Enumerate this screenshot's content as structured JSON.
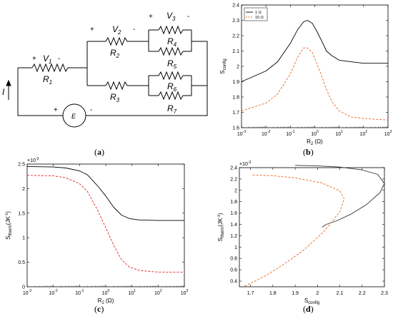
{
  "figure": {
    "panels": [
      {
        "id": "a",
        "caption": "a"
      },
      {
        "id": "b",
        "caption": "b"
      },
      {
        "id": "c",
        "caption": "c"
      },
      {
        "id": "d",
        "caption": "d"
      }
    ]
  },
  "circuit": {
    "current_label": "I",
    "source_label": "E",
    "source_plus": "+",
    "source_minus": "-",
    "r1": {
      "label": "R",
      "sub": "1",
      "v": "V",
      "vsub": "1",
      "plus": "+",
      "minus": "-"
    },
    "r2": {
      "label": "R",
      "sub": "2",
      "v": "V",
      "vsub": "2",
      "plus": "+",
      "minus": "-"
    },
    "r3": {
      "label": "R",
      "sub": "3"
    },
    "r4": {
      "label": "R",
      "sub": "4",
      "v": "V",
      "vsub": "3",
      "plus": "+",
      "minus": "-"
    },
    "r5": {
      "label": "R",
      "sub": "5"
    },
    "r6": {
      "label": "R",
      "sub": "6"
    },
    "r7": {
      "label": "R",
      "sub": "7"
    }
  },
  "chart_data": [
    {
      "panel": "b",
      "type": "line",
      "xscale": "log",
      "xlim": [
        0.001,
        1000
      ],
      "ylim": [
        1.6,
        2.4
      ],
      "xticks": [
        "10",
        "10",
        "10",
        "10",
        "10",
        "10",
        "10"
      ],
      "xtick_exponents": [
        "-3",
        "-2",
        "-1",
        "0",
        "1",
        "2",
        "3"
      ],
      "yticks": [
        "1.6",
        "1.7",
        "1.8",
        "1.9",
        "2",
        "2.1",
        "2.2",
        "2.3",
        "2.4"
      ],
      "xlabel": "R",
      "xlabel_sub": "2",
      "xlabel_unit": " (Ω)",
      "ylabel": "S",
      "ylabel_sub": "config",
      "legend_position": "top-left",
      "series": [
        {
          "name": "1 Ω",
          "color": "#000000",
          "dash": "solid",
          "x": [
            0.001,
            0.01,
            0.03,
            0.1,
            0.2,
            0.35,
            0.5,
            0.8,
            1.2,
            2,
            3,
            5,
            10,
            30,
            100,
            1000
          ],
          "y": [
            1.9,
            1.97,
            2.03,
            2.15,
            2.24,
            2.29,
            2.3,
            2.28,
            2.23,
            2.16,
            2.1,
            2.07,
            2.04,
            2.03,
            2.02,
            2.02
          ]
        },
        {
          "name": "10 Ω",
          "color": "#e8641e",
          "dash": "dashed",
          "x": [
            0.001,
            0.01,
            0.03,
            0.1,
            0.2,
            0.35,
            0.5,
            0.8,
            1.2,
            2,
            3,
            5,
            10,
            30,
            100,
            1000
          ],
          "y": [
            1.71,
            1.76,
            1.82,
            1.95,
            2.06,
            2.12,
            2.12,
            2.09,
            2.02,
            1.93,
            1.85,
            1.77,
            1.71,
            1.67,
            1.66,
            1.65
          ]
        }
      ]
    },
    {
      "panel": "c",
      "type": "line",
      "xscale": "log",
      "xlim": [
        0.001,
        1000
      ],
      "ylim": [
        0,
        2.5
      ],
      "y_multiplier": "×10",
      "y_multiplier_exp": "-3",
      "xticks": [
        "10",
        "10",
        "10",
        "10",
        "10",
        "10",
        "10"
      ],
      "xtick_exponents": [
        "-3",
        "-2",
        "-1",
        "0",
        "1",
        "2",
        "3"
      ],
      "yticks": [
        "0",
        "0.5",
        "1",
        "1.5",
        "2",
        "2.5"
      ],
      "xlabel": "R",
      "xlabel_sub": "2",
      "xlabel_unit": " (Ω)",
      "ylabel": "S",
      "ylabel_sub": "therm",
      "ylabel_unit": "(JK",
      "ylabel_unit_exp": "-1",
      "ylabel_close": ")",
      "series": [
        {
          "color": "#000000",
          "dash": "solid",
          "x": [
            0.001,
            0.01,
            0.03,
            0.1,
            0.2,
            0.5,
            1,
            2,
            4,
            8,
            20,
            100,
            1000
          ],
          "y": [
            2.45,
            2.44,
            2.42,
            2.36,
            2.28,
            2.05,
            1.85,
            1.62,
            1.46,
            1.39,
            1.36,
            1.35,
            1.35
          ]
        },
        {
          "color": "#e02020",
          "dash": "dashed",
          "x": [
            0.001,
            0.01,
            0.03,
            0.1,
            0.2,
            0.5,
            1,
            2,
            4,
            8,
            20,
            100,
            1000
          ],
          "y": [
            2.27,
            2.26,
            2.22,
            2.1,
            1.94,
            1.55,
            1.2,
            0.85,
            0.55,
            0.4,
            0.33,
            0.3,
            0.3
          ]
        }
      ]
    },
    {
      "panel": "d",
      "type": "line",
      "xlim": [
        1.65,
        2.3
      ],
      "ylim": [
        0.3,
        2.4
      ],
      "y_multiplier": "×10",
      "y_multiplier_exp": "-3",
      "xticks": [
        "1.7",
        "1.8",
        "1.9",
        "2",
        "2.1",
        "2.2",
        "2.3"
      ],
      "yticks": [
        "0.4",
        "0.6",
        "0.8",
        "1",
        "1.2",
        "1.4",
        "1.6",
        "1.8",
        "2",
        "2.2",
        "2.4"
      ],
      "xlabel": "S",
      "xlabel_sub": "config",
      "ylabel": "S",
      "ylabel_sub": "therm",
      "ylabel_unit": "(JK",
      "ylabel_unit_exp": "-1",
      "ylabel_close": ")",
      "series": [
        {
          "color": "#333333",
          "dash": "solid",
          "x": [
            1.9,
            2.0,
            2.1,
            2.2,
            2.27,
            2.3,
            2.28,
            2.22,
            2.15,
            2.09,
            2.04,
            2.02
          ],
          "y": [
            2.44,
            2.43,
            2.41,
            2.36,
            2.28,
            2.12,
            1.96,
            1.75,
            1.58,
            1.47,
            1.4,
            1.35
          ]
        },
        {
          "color": "#e8641e",
          "dash": "dashed",
          "x": [
            1.71,
            1.79,
            1.9,
            2.02,
            2.1,
            2.12,
            2.1,
            2.03,
            1.94,
            1.85,
            1.77,
            1.71,
            1.67
          ],
          "y": [
            2.27,
            2.26,
            2.22,
            2.13,
            1.99,
            1.85,
            1.62,
            1.28,
            0.95,
            0.7,
            0.5,
            0.38,
            0.3
          ]
        }
      ]
    }
  ]
}
